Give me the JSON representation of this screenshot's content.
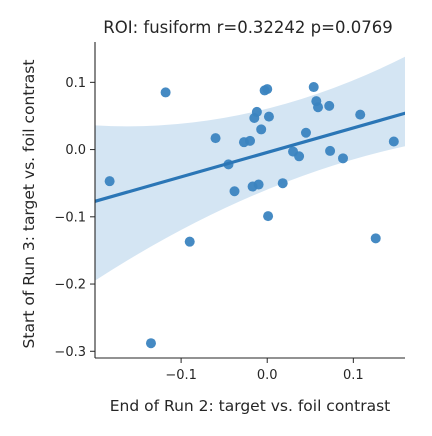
{
  "chart_data": {
    "type": "scatter",
    "title": "ROI: fusiform  r=0.32242  p=0.0769",
    "xlabel": "End of Run 2: target vs. foil contrast",
    "ylabel": "Start of Run 3: target vs. foil contrast",
    "xlim": [
      -0.2,
      0.16
    ],
    "ylim": [
      -0.31,
      0.16
    ],
    "x_ticks": [
      -0.1,
      0.0,
      0.1
    ],
    "x_tick_labels": [
      "−0.1",
      "0.0",
      "0.1"
    ],
    "y_ticks": [
      -0.3,
      -0.2,
      -0.1,
      0.0,
      0.1
    ],
    "y_tick_labels": [
      "−0.3",
      "−0.2",
      "−0.1",
      "0.0",
      "0.1"
    ],
    "grid": false,
    "points": [
      {
        "x": -0.183,
        "y": -0.047
      },
      {
        "x": -0.135,
        "y": -0.288
      },
      {
        "x": -0.118,
        "y": 0.085
      },
      {
        "x": -0.09,
        "y": -0.137
      },
      {
        "x": -0.06,
        "y": 0.017
      },
      {
        "x": -0.045,
        "y": -0.022
      },
      {
        "x": -0.038,
        "y": -0.062
      },
      {
        "x": -0.027,
        "y": 0.011
      },
      {
        "x": -0.02,
        "y": 0.013
      },
      {
        "x": -0.017,
        "y": -0.055
      },
      {
        "x": -0.015,
        "y": 0.047
      },
      {
        "x": -0.012,
        "y": 0.056
      },
      {
        "x": -0.01,
        "y": -0.052
      },
      {
        "x": -0.007,
        "y": 0.03
      },
      {
        "x": -0.003,
        "y": 0.088
      },
      {
        "x": 0.0,
        "y": 0.09
      },
      {
        "x": 0.001,
        "y": -0.099
      },
      {
        "x": 0.002,
        "y": 0.049
      },
      {
        "x": 0.018,
        "y": -0.05
      },
      {
        "x": 0.03,
        "y": -0.003
      },
      {
        "x": 0.037,
        "y": -0.01
      },
      {
        "x": 0.045,
        "y": 0.025
      },
      {
        "x": 0.054,
        "y": 0.093
      },
      {
        "x": 0.057,
        "y": 0.072
      },
      {
        "x": 0.059,
        "y": 0.063
      },
      {
        "x": 0.072,
        "y": 0.065
      },
      {
        "x": 0.073,
        "y": -0.002
      },
      {
        "x": 0.088,
        "y": -0.013
      },
      {
        "x": 0.108,
        "y": 0.052
      },
      {
        "x": 0.126,
        "y": -0.132
      },
      {
        "x": 0.147,
        "y": 0.012
      }
    ],
    "regression": {
      "x": [
        -0.2,
        0.16
      ],
      "y": [
        -0.077,
        0.054
      ],
      "ci_upper": [
        0.036,
        0.138
      ],
      "ci_lower": [
        -0.195,
        0.005
      ]
    },
    "colors": {
      "point": "#3b84c0",
      "line": "#2b76b6",
      "band": "#c6dcef",
      "axis": "#262626"
    }
  }
}
